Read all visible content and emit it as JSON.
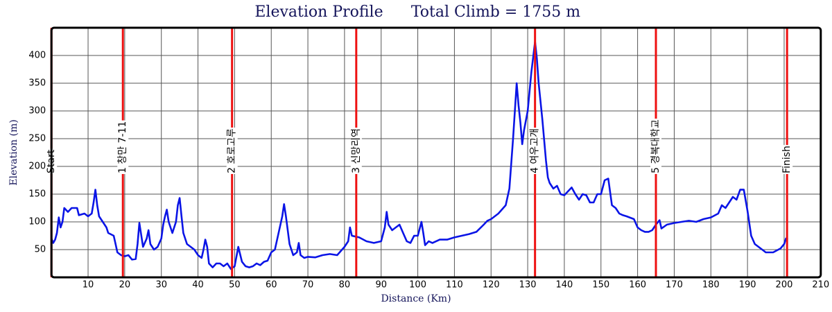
{
  "chart_data": {
    "type": "line",
    "title": "Elevation Profile",
    "subtitle": "Total Climb = 1755 m",
    "x_label": "Distance (Km)",
    "y_label": "Elevation (m)",
    "xlim": [
      0,
      210
    ],
    "ylim": [
      0,
      450
    ],
    "xticks": [
      10,
      20,
      30,
      40,
      50,
      60,
      70,
      80,
      90,
      100,
      110,
      120,
      130,
      140,
      150,
      160,
      170,
      180,
      190,
      200,
      210
    ],
    "yticks": [
      50,
      100,
      150,
      200,
      250,
      300,
      350,
      400
    ],
    "grid": true,
    "color": "#0a14e6",
    "marker_color": "#ee1111",
    "markers": [
      {
        "x": 0,
        "label": "Start"
      },
      {
        "x": 19.5,
        "label": "1 창만 7-11"
      },
      {
        "x": 49.3,
        "label": "2 호로고루"
      },
      {
        "x": 83.2,
        "label": "3 신망리역"
      },
      {
        "x": 132,
        "label": "4 여우고개"
      },
      {
        "x": 165,
        "label": "5 경복대학교"
      },
      {
        "x": 200.8,
        "label": "Finish"
      }
    ],
    "x": [
      0,
      0.5,
      1,
      1.5,
      2,
      2.5,
      3,
      3.5,
      4.5,
      5.5,
      7,
      7.5,
      9,
      10,
      11,
      11.5,
      12,
      12.5,
      13,
      14,
      15,
      15.5,
      17,
      17.5,
      18,
      19,
      20,
      21,
      22,
      23,
      23.5,
      24,
      25,
      26,
      26.5,
      27,
      28,
      29,
      30,
      30.5,
      31,
      31.5,
      32,
      33,
      34,
      34.5,
      35,
      35.5,
      36,
      37,
      38,
      39,
      40,
      41,
      41.5,
      42,
      42.5,
      43,
      44,
      45,
      46,
      47,
      48,
      49,
      50,
      51,
      52,
      53,
      54,
      55,
      56,
      57,
      58,
      59,
      60,
      61,
      62,
      63,
      63.5,
      64,
      65,
      66,
      67,
      67.5,
      68,
      69,
      70,
      72,
      74,
      76,
      78,
      80,
      81,
      81.5,
      82,
      84,
      86,
      88,
      90,
      91,
      91.5,
      92,
      93,
      94,
      95,
      96,
      97,
      98,
      99,
      100,
      101,
      101.5,
      102,
      103,
      104,
      106,
      108,
      110,
      112,
      114,
      116,
      118,
      119,
      120,
      122,
      124,
      125,
      126,
      127,
      127.5,
      128,
      128.5,
      129,
      130,
      131,
      132,
      132.5,
      133,
      134,
      135,
      135.5,
      136,
      137,
      138,
      139,
      140,
      141,
      142,
      143,
      144,
      145,
      146,
      147,
      148,
      149,
      150,
      151,
      152,
      153,
      154,
      155,
      156,
      157,
      159,
      160,
      161,
      162,
      163,
      164,
      165,
      166,
      166.5,
      168,
      170,
      172,
      174,
      176,
      178,
      180,
      182,
      183,
      184,
      185,
      186,
      187,
      188,
      189,
      190,
      191,
      192,
      193,
      194,
      195,
      197,
      199,
      200,
      200.5,
      201
    ],
    "values": [
      70,
      62,
      68,
      80,
      108,
      90,
      100,
      125,
      118,
      125,
      125,
      112,
      115,
      110,
      115,
      135,
      158,
      130,
      110,
      100,
      90,
      80,
      75,
      60,
      45,
      40,
      38,
      40,
      32,
      33,
      60,
      98,
      55,
      70,
      85,
      60,
      50,
      55,
      70,
      95,
      110,
      122,
      100,
      80,
      100,
      130,
      143,
      110,
      80,
      60,
      55,
      50,
      40,
      35,
      50,
      68,
      55,
      25,
      18,
      25,
      25,
      20,
      25,
      15,
      20,
      55,
      28,
      20,
      18,
      20,
      25,
      22,
      28,
      30,
      45,
      50,
      80,
      110,
      132,
      110,
      60,
      40,
      45,
      62,
      40,
      35,
      37,
      36,
      40,
      42,
      40,
      55,
      65,
      90,
      75,
      72,
      65,
      62,
      65,
      90,
      118,
      95,
      85,
      90,
      95,
      80,
      65,
      62,
      75,
      75,
      100,
      80,
      58,
      65,
      62,
      68,
      68,
      72,
      75,
      78,
      82,
      95,
      102,
      105,
      115,
      130,
      160,
      250,
      350,
      310,
      280,
      240,
      265,
      300,
      370,
      425,
      395,
      350,
      285,
      210,
      180,
      170,
      160,
      165,
      150,
      148,
      155,
      162,
      150,
      140,
      150,
      148,
      135,
      135,
      150,
      150,
      175,
      178,
      130,
      125,
      115,
      112,
      110,
      105,
      90,
      85,
      82,
      82,
      85,
      95,
      103,
      88,
      95,
      98,
      100,
      102,
      100,
      105,
      108,
      115,
      130,
      125,
      135,
      145,
      140,
      158,
      158,
      120,
      75,
      60,
      55,
      50,
      45,
      45,
      52,
      60,
      70,
      68
    ]
  }
}
